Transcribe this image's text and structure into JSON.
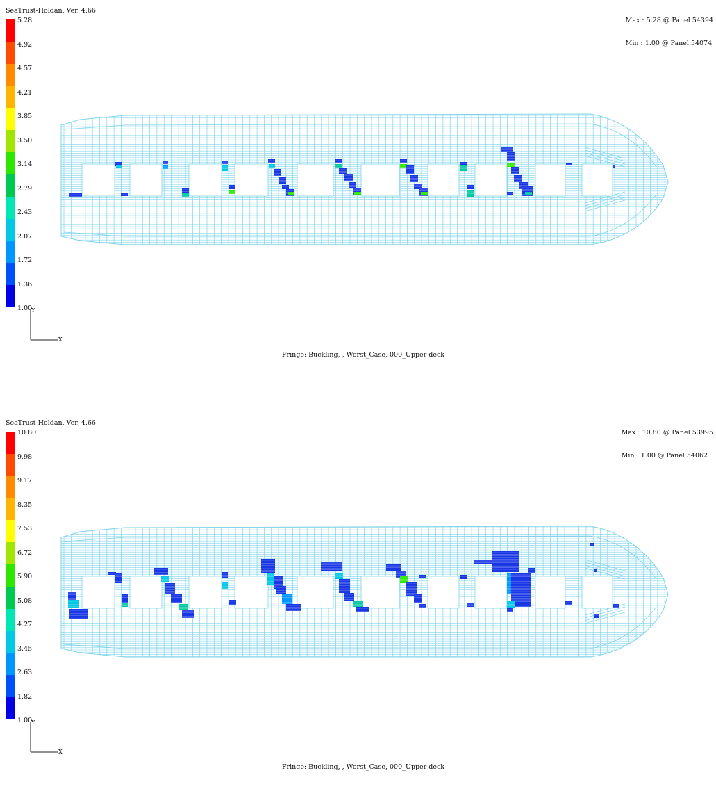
{
  "views": [
    {
      "app_title": "SeaTrust-Holdan, Ver. 4.66",
      "max_text": "Max : 5.28 @ Panel 54394",
      "min_text": "Min : 1.00 @ Panel 54074",
      "caption": "Fringe: Buckling, , Worst_Case, 000_Upper deck",
      "legend_labels": [
        "5.28",
        "4.92",
        "4.57",
        "4.21",
        "3.85",
        "3.50",
        "3.14",
        "2.79",
        "2.43",
        "2.07",
        "1.72",
        "1.36",
        "1.00"
      ],
      "axis_y": "Y",
      "axis_x": "X"
    },
    {
      "app_title": "SeaTrust-Holdan, Ver. 4.66",
      "max_text": "Max : 10.80 @ Panel 53995",
      "min_text": "Min : 1.00 @ Panel 54062",
      "caption": "Fringe: Buckling, , Worst_Case, 000_Upper deck",
      "legend_labels": [
        "10.80",
        "9.98",
        "9.17",
        "8.35",
        "7.53",
        "6.72",
        "5.90",
        "5.08",
        "4.27",
        "3.45",
        "2.63",
        "1.82",
        "1.00"
      ],
      "axis_y": "Y",
      "axis_x": "X"
    }
  ],
  "legend_colors": [
    "#ff0000",
    "#ff4a00",
    "#ff8c00",
    "#ffb400",
    "#ffff00",
    "#a0e600",
    "#2ee600",
    "#00c850",
    "#00e6b4",
    "#00c8e6",
    "#0096ff",
    "#0050ff",
    "#0000e6"
  ],
  "mesh_color": "#7fd4ea"
}
